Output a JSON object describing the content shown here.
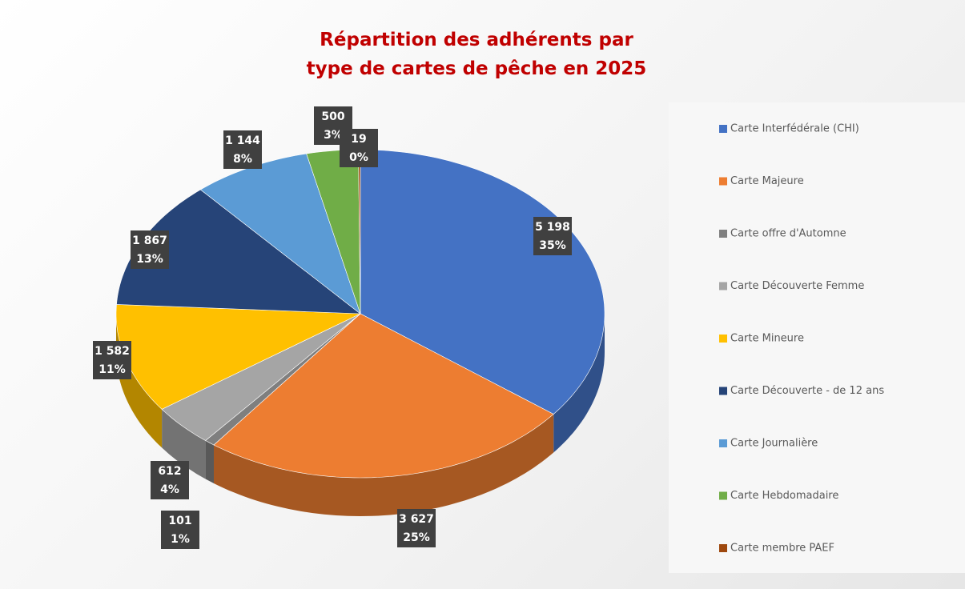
{
  "chart_data": {
    "type": "pie3d",
    "title": "Répartition des adhérents par type de cartes de pêche en 2025",
    "categories": [
      "Carte Interfédérale (CHI)",
      "Carte Majeure",
      "Carte offre d'Automne",
      "Carte Découverte Femme",
      "Carte Mineure",
      "Carte Découverte - de 12 ans",
      "Carte Journalière",
      "Carte Hebdomadaire",
      "Carte membre PAEF"
    ],
    "values": [
      5198,
      3627,
      101,
      612,
      1582,
      1867,
      1144,
      500,
      19
    ],
    "value_labels": [
      "5 198",
      "3 627",
      "101",
      "612",
      "1 582",
      "1 867",
      "1 144",
      "500",
      "19"
    ],
    "percent_labels": [
      "35%",
      "25%",
      "1%",
      "4%",
      "11%",
      "13%",
      "8%",
      "3%",
      "0%"
    ],
    "colors": [
      "#4472c4",
      "#ed7d31",
      "#7f7f7f",
      "#a5a5a5",
      "#ffc000",
      "#264478",
      "#5b9bd5",
      "#70ad47",
      "#9e480e"
    ],
    "legend": "right"
  }
}
